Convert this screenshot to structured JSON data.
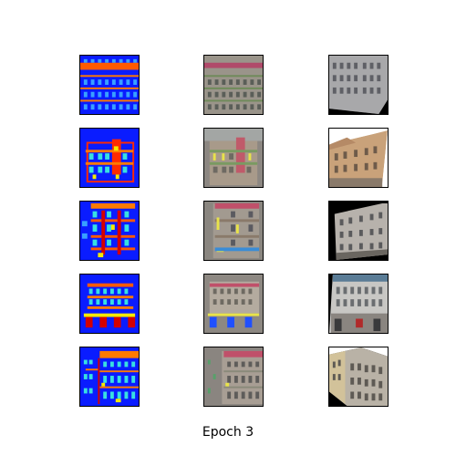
{
  "caption": "Epoch 3",
  "grid": {
    "rows": 5,
    "columns": 3
  },
  "colors": {
    "label_blue": "#0a1cff",
    "label_orange": "#ff7a00",
    "label_red": "#d40000",
    "label_cyan": "#38e0e0",
    "label_yellow": "#f4ea00",
    "facade_gray": "#8e8a86"
  },
  "rows": [
    {
      "label_map": "label-map-1",
      "generated": "generated-facade-1",
      "photo": "facade-photo-1"
    },
    {
      "label_map": "label-map-2",
      "generated": "generated-facade-2",
      "photo": "facade-photo-2"
    },
    {
      "label_map": "label-map-3",
      "generated": "generated-facade-3",
      "photo": "facade-photo-3"
    },
    {
      "label_map": "label-map-4",
      "generated": "generated-facade-4",
      "photo": "facade-photo-4"
    },
    {
      "label_map": "label-map-5",
      "generated": "generated-facade-5",
      "photo": "facade-photo-5"
    }
  ]
}
